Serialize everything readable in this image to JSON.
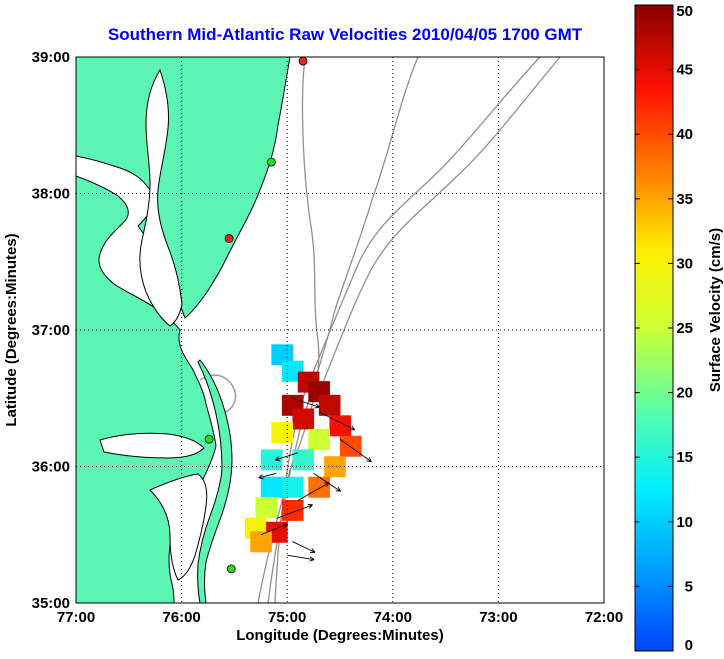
{
  "title": "Southern Mid-Atlantic Raw Velocities 2010/04/05 1700 GMT",
  "title_color": "#0000ff",
  "x_axis": {
    "label": "Longitude (Degrees:Minutes)",
    "range": [
      -77,
      -72
    ],
    "ticks": [
      {
        "value": -77,
        "label": "77:00"
      },
      {
        "value": -76,
        "label": "76:00"
      },
      {
        "value": -75,
        "label": "75:00"
      },
      {
        "value": -74,
        "label": "74:00"
      },
      {
        "value": -73,
        "label": "73:00"
      },
      {
        "value": -72,
        "label": "72:00"
      }
    ]
  },
  "y_axis": {
    "label": "Latitude (Degrees:Minutes)",
    "range": [
      35,
      39
    ],
    "ticks": [
      {
        "value": 35,
        "label": "35:00"
      },
      {
        "value": 36,
        "label": "36:00"
      },
      {
        "value": 37,
        "label": "37:00"
      },
      {
        "value": 38,
        "label": "38:00"
      },
      {
        "value": 39,
        "label": "39:00"
      }
    ]
  },
  "grid": "dotted",
  "colorbar": {
    "label": "Surface Velocity (cm/s)",
    "range": [
      0,
      50
    ],
    "ticks": [
      {
        "value": 0,
        "label": "0"
      },
      {
        "value": 5,
        "label": "5"
      },
      {
        "value": 10,
        "label": "10"
      },
      {
        "value": 15,
        "label": "15"
      },
      {
        "value": 20,
        "label": "20"
      },
      {
        "value": 25,
        "label": "25"
      },
      {
        "value": 30,
        "label": "30"
      },
      {
        "value": 35,
        "label": "35"
      },
      {
        "value": 40,
        "label": "40"
      },
      {
        "value": 45,
        "label": "45"
      },
      {
        "value": 50,
        "label": "50"
      }
    ],
    "colormap": "jet"
  },
  "colors": {
    "land": "#5cf5b4",
    "water": "#ffffff",
    "coastline": "#000000",
    "bathymetry": "#909090",
    "station_active": "#22dd22",
    "station_alert": "#ee2222",
    "vectors": "#000000"
  },
  "stations": [
    {
      "lon": -74.85,
      "lat": 38.97,
      "status": "alert"
    },
    {
      "lon": -75.15,
      "lat": 38.23,
      "status": "active"
    },
    {
      "lon": -75.55,
      "lat": 37.67,
      "status": "alert"
    },
    {
      "lon": -75.74,
      "lat": 36.2,
      "status": "active"
    },
    {
      "lon": -75.53,
      "lat": 35.25,
      "status": "active"
    }
  ],
  "chart_data": {
    "type": "heatmap",
    "variable": "Surface Velocity (cm/s)",
    "cells": [
      {
        "lon": -75.05,
        "lat": 36.82,
        "speed": 10
      },
      {
        "lon": -74.95,
        "lat": 36.7,
        "speed": 12
      },
      {
        "lon": -74.8,
        "lat": 36.62,
        "speed": 47
      },
      {
        "lon": -74.7,
        "lat": 36.55,
        "speed": 49
      },
      {
        "lon": -74.95,
        "lat": 36.45,
        "speed": 48
      },
      {
        "lon": -74.6,
        "lat": 36.45,
        "speed": 47
      },
      {
        "lon": -74.85,
        "lat": 36.35,
        "speed": 46
      },
      {
        "lon": -74.5,
        "lat": 36.3,
        "speed": 44
      },
      {
        "lon": -75.05,
        "lat": 36.25,
        "speed": 30
      },
      {
        "lon": -74.7,
        "lat": 36.2,
        "speed": 25
      },
      {
        "lon": -74.4,
        "lat": 36.15,
        "speed": 40
      },
      {
        "lon": -75.15,
        "lat": 36.05,
        "speed": 15
      },
      {
        "lon": -74.85,
        "lat": 36.05,
        "speed": 16
      },
      {
        "lon": -74.55,
        "lat": 36.0,
        "speed": 35
      },
      {
        "lon": -75.15,
        "lat": 35.85,
        "speed": 12
      },
      {
        "lon": -74.95,
        "lat": 35.85,
        "speed": 14
      },
      {
        "lon": -74.7,
        "lat": 35.85,
        "speed": 38
      },
      {
        "lon": -75.2,
        "lat": 35.7,
        "speed": 25
      },
      {
        "lon": -74.95,
        "lat": 35.68,
        "speed": 42
      },
      {
        "lon": -75.3,
        "lat": 35.55,
        "speed": 30
      },
      {
        "lon": -75.1,
        "lat": 35.52,
        "speed": 45
      },
      {
        "lon": -75.25,
        "lat": 35.45,
        "speed": 35
      }
    ],
    "vectors": [
      {
        "lon": -74.95,
        "lat": 36.5,
        "u": 30,
        "v": -10
      },
      {
        "lon": -74.7,
        "lat": 36.4,
        "u": 40,
        "v": -20
      },
      {
        "lon": -74.5,
        "lat": 36.2,
        "u": 35,
        "v": -25
      },
      {
        "lon": -74.9,
        "lat": 36.1,
        "u": -25,
        "v": -8
      },
      {
        "lon": -75.1,
        "lat": 35.95,
        "u": -20,
        "v": -5
      },
      {
        "lon": -74.75,
        "lat": 35.95,
        "u": 30,
        "v": -20
      },
      {
        "lon": -74.9,
        "lat": 35.75,
        "u": 35,
        "v": 20
      },
      {
        "lon": -75.1,
        "lat": 35.62,
        "u": 40,
        "v": 15
      },
      {
        "lon": -75.25,
        "lat": 35.5,
        "u": 30,
        "v": 12
      },
      {
        "lon": -74.95,
        "lat": 35.45,
        "u": 25,
        "v": -12
      },
      {
        "lon": -75.0,
        "lat": 35.35,
        "u": 30,
        "v": -5
      }
    ]
  }
}
